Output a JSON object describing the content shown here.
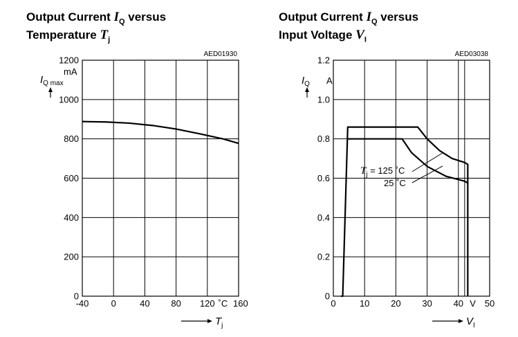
{
  "chart_data": [
    {
      "type": "line",
      "title_lines": [
        "Output Current",
        "versus",
        "Temperature"
      ],
      "title_sym1": "I",
      "title_sub1": "Q",
      "title_sym2": "T",
      "title_sub2": "j",
      "code": "AED01930",
      "ylabel_sym": "I",
      "ylabel_sub": "Q max",
      "yunit": "mA",
      "xlabel_sym": "T",
      "xlabel_sub": "j",
      "xunit": "˚C",
      "xlim": [
        -40,
        160
      ],
      "ylim": [
        0,
        1200
      ],
      "xticks": [
        -40,
        0,
        40,
        80,
        120,
        160
      ],
      "yticks": [
        0,
        200,
        400,
        600,
        800,
        1000,
        1200
      ],
      "xtick_labels": [
        "-40",
        "0",
        "40",
        "80",
        "120",
        "160"
      ],
      "ytick_labels": [
        "0",
        "200",
        "400",
        "600",
        "800",
        "1000",
        "1200"
      ],
      "grid": true,
      "series": [
        {
          "x": [
            -40,
            -10,
            20,
            50,
            80,
            110,
            140,
            160
          ],
          "y": [
            888,
            886,
            880,
            868,
            850,
            826,
            800,
            777
          ]
        }
      ]
    },
    {
      "type": "line",
      "title_lines": [
        "Output Current",
        "versus",
        "Input Voltage"
      ],
      "title_sym1": "I",
      "title_sub1": "Q",
      "title_sym2": "V",
      "title_sub2": "I",
      "code": "AED03038",
      "ylabel_sym": "I",
      "ylabel_sub": "Q",
      "yunit": "A",
      "xlabel_sym": "V",
      "xlabel_sub": "I",
      "xunit": "V",
      "xlim": [
        0,
        50
      ],
      "ylim": [
        0,
        1.2
      ],
      "xticks": [
        0,
        10,
        20,
        30,
        40,
        50
      ],
      "yticks": [
        0,
        0.2,
        0.4,
        0.6,
        0.8,
        1.0,
        1.2
      ],
      "xtick_labels": [
        "0",
        "10",
        "20",
        "30",
        "40",
        "50"
      ],
      "ytick_labels": [
        "0",
        "0.2",
        "0.4",
        "0.6",
        "0.8",
        "1.0",
        "1.2"
      ],
      "extra_xgrid": [
        42
      ],
      "grid": true,
      "series": [
        {
          "name": "Tj = 125 ˚C",
          "x": [
            2.5,
            3,
            4.6,
            27,
            30,
            34,
            38,
            42,
            43,
            43
          ],
          "y": [
            0,
            0,
            0.86,
            0.86,
            0.8,
            0.74,
            0.7,
            0.68,
            0.67,
            0
          ]
        },
        {
          "name": "25 ˚C",
          "x": [
            4.6,
            22,
            25,
            30,
            36,
            42,
            43
          ],
          "y": [
            0.8,
            0.8,
            0.73,
            0.66,
            0.61,
            0.585,
            0.575
          ]
        }
      ],
      "annotations": [
        {
          "sym": "T",
          "sub": "j",
          "text": " = 125 ˚C"
        },
        {
          "text": "25 ˚C"
        }
      ]
    }
  ]
}
